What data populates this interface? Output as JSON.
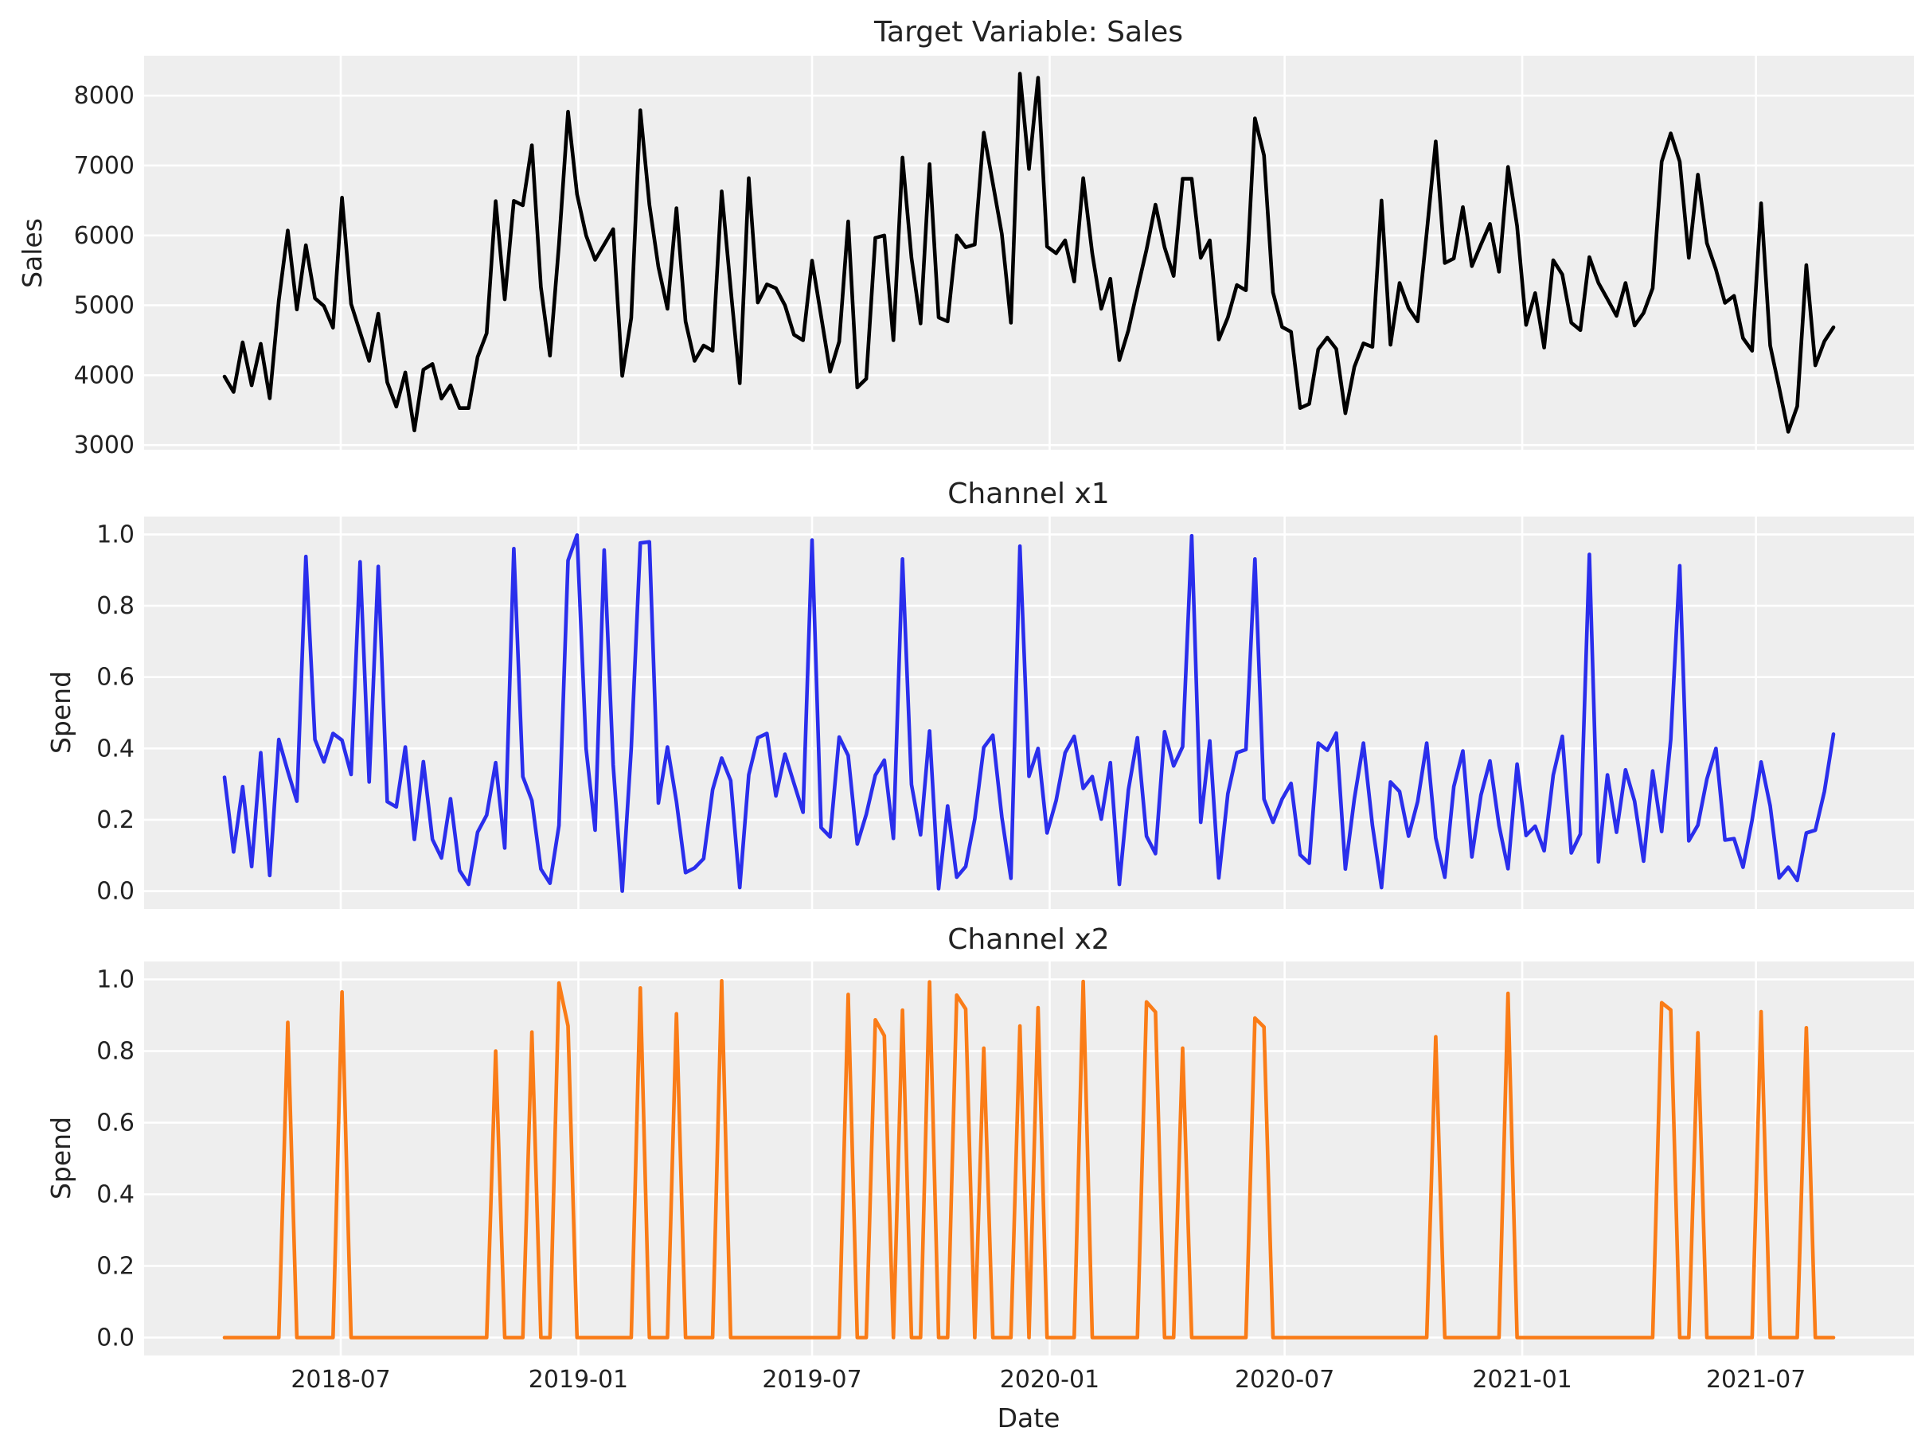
{
  "chart_data": [
    {
      "type": "line",
      "title": "Target Variable: Sales",
      "ylabel": "Sales",
      "ylim": [
        2934,
        8571
      ],
      "yticks": [
        3000,
        4000,
        5000,
        6000,
        7000,
        8000
      ],
      "ytick_labels": [
        "3000",
        "4000",
        "5000",
        "6000",
        "7000",
        "8000"
      ],
      "grid": true,
      "date_start": "2018-04-02",
      "date_freq": "weekly",
      "color": "#000000",
      "values": [
        3980,
        3760,
        4470,
        3855,
        4450,
        3670,
        5070,
        6070,
        4940,
        5860,
        5100,
        4990,
        4680,
        6540,
        5020,
        4615,
        4205,
        4880,
        3900,
        3550,
        4040,
        3210,
        4080,
        4160,
        3665,
        3855,
        3530,
        3530,
        4260,
        4600,
        6490,
        5085,
        6495,
        6430,
        7290,
        5260,
        4280,
        5870,
        7770,
        6590,
        6000,
        5650,
        5870,
        6090,
        3990,
        4820,
        7790,
        6440,
        5550,
        4950,
        6390,
        4770,
        4205,
        4425,
        4350,
        6630,
        5240,
        3885,
        6820,
        5040,
        5300,
        5245,
        5000,
        4580,
        4500,
        5640,
        4845,
        4050,
        4480,
        6200,
        3825,
        3950,
        5965,
        6000,
        4500,
        7115,
        5680,
        4740,
        7020,
        4825,
        4770,
        6000,
        5830,
        5870,
        7470,
        6745,
        6020,
        4750,
        8315,
        6950,
        8255,
        5840,
        5745,
        5930,
        5340,
        6820,
        5740,
        4950,
        5380,
        4215,
        4645,
        5230,
        5795,
        6440,
        5830,
        5420,
        6810,
        6810,
        5680,
        5930,
        4510,
        4825,
        5290,
        5215,
        7675,
        7145,
        5185,
        4690,
        4620,
        3530,
        3590,
        4370,
        4540,
        4375,
        3455,
        4120,
        4455,
        4405,
        6500,
        4435,
        5320,
        4960,
        4770,
        6040,
        7345,
        5605,
        5670,
        6405,
        5560,
        5870,
        6165,
        5480,
        6980,
        6135,
        4720,
        5175,
        4395,
        5645,
        5440,
        4750,
        4645,
        5690,
        5320,
        5090,
        4850,
        5320,
        4710,
        4890,
        5245,
        7055,
        7460,
        7055,
        5680,
        6870,
        5890,
        5510,
        5035,
        5135,
        4530,
        4350,
        6460,
        4425,
        3820,
        3190,
        3555,
        5575,
        4140,
        4485,
        4685
      ]
    },
    {
      "type": "line",
      "title": "Channel x1",
      "ylabel": "Spend",
      "ylim": [
        -0.05,
        1.05
      ],
      "yticks": [
        0,
        0.2,
        0.4,
        0.6,
        0.8,
        1.0
      ],
      "ytick_labels": [
        "0.0",
        "0.2",
        "0.4",
        "0.6",
        "0.8",
        "1.0"
      ],
      "grid": true,
      "date_start": "2018-04-02",
      "date_freq": "weekly",
      "color": "#2a2eec",
      "values": [
        0.319,
        0.11,
        0.293,
        0.069,
        0.388,
        0.044,
        0.425,
        0.336,
        0.252,
        0.938,
        0.425,
        0.362,
        0.442,
        0.423,
        0.327,
        0.923,
        0.306,
        0.91,
        0.251,
        0.236,
        0.404,
        0.145,
        0.363,
        0.145,
        0.093,
        0.259,
        0.058,
        0.019,
        0.165,
        0.213,
        0.36,
        0.121,
        0.96,
        0.321,
        0.254,
        0.062,
        0.022,
        0.184,
        0.927,
        0.998,
        0.399,
        0.171,
        0.956,
        0.354,
        0.0,
        0.4,
        0.976,
        0.979,
        0.247,
        0.404,
        0.251,
        0.052,
        0.065,
        0.091,
        0.284,
        0.373,
        0.31,
        0.01,
        0.326,
        0.43,
        0.442,
        0.267,
        0.384,
        0.302,
        0.221,
        0.984,
        0.178,
        0.152,
        0.432,
        0.38,
        0.132,
        0.215,
        0.325,
        0.367,
        0.148,
        0.931,
        0.299,
        0.158,
        0.449,
        0.007,
        0.239,
        0.039,
        0.069,
        0.202,
        0.403,
        0.437,
        0.208,
        0.036,
        0.967,
        0.322,
        0.4,
        0.163,
        0.254,
        0.388,
        0.434,
        0.288,
        0.321,
        0.202,
        0.36,
        0.019,
        0.284,
        0.43,
        0.154,
        0.105,
        0.447,
        0.351,
        0.405,
        0.996,
        0.193,
        0.421,
        0.037,
        0.273,
        0.388,
        0.397,
        0.931,
        0.258,
        0.193,
        0.258,
        0.302,
        0.102,
        0.078,
        0.415,
        0.395,
        0.443,
        0.062,
        0.259,
        0.415,
        0.184,
        0.01,
        0.306,
        0.279,
        0.154,
        0.251,
        0.415,
        0.149,
        0.039,
        0.293,
        0.393,
        0.096,
        0.269,
        0.365,
        0.184,
        0.063,
        0.356,
        0.156,
        0.182,
        0.113,
        0.325,
        0.434,
        0.107,
        0.16,
        0.944,
        0.082,
        0.326,
        0.165,
        0.34,
        0.252,
        0.084,
        0.337,
        0.167,
        0.425,
        0.912,
        0.141,
        0.185,
        0.314,
        0.4,
        0.143,
        0.147,
        0.067,
        0.199,
        0.362,
        0.239,
        0.037,
        0.067,
        0.03,
        0.163,
        0.171,
        0.279,
        0.44
      ]
    },
    {
      "type": "line",
      "title": "Channel x2",
      "ylabel": "Spend",
      "xlabel": "Date",
      "ylim": [
        -0.05,
        1.05
      ],
      "yticks": [
        0,
        0.2,
        0.4,
        0.6,
        0.8,
        1.0
      ],
      "ytick_labels": [
        "0.0",
        "0.2",
        "0.4",
        "0.6",
        "0.8",
        "1.0"
      ],
      "xticks": [
        "2018-07-01",
        "2019-01-01",
        "2019-07-01",
        "2020-01-01",
        "2020-07-01",
        "2021-01-01",
        "2021-07-01"
      ],
      "xtick_labels": [
        "2018-07",
        "2019-01",
        "2019-07",
        "2020-01",
        "2020-07",
        "2021-01",
        "2021-07"
      ],
      "grid": true,
      "date_start": "2018-04-02",
      "date_freq": "weekly",
      "color": "#fa7c17",
      "values": [
        0,
        0,
        0,
        0,
        0,
        0,
        0,
        0.88,
        0,
        0,
        0,
        0,
        0,
        0.965,
        0,
        0,
        0,
        0,
        0,
        0,
        0,
        0,
        0,
        0,
        0,
        0,
        0,
        0,
        0,
        0,
        0.8,
        0,
        0,
        0,
        0.853,
        0,
        0,
        0.99,
        0.87,
        0,
        0,
        0,
        0,
        0,
        0,
        0,
        0.976,
        0,
        0,
        0,
        0.904,
        0,
        0,
        0,
        0,
        0.996,
        0,
        0,
        0,
        0,
        0,
        0,
        0,
        0,
        0,
        0,
        0,
        0,
        0,
        0.958,
        0,
        0,
        0.887,
        0.843,
        0,
        0.914,
        0,
        0,
        0.993,
        0,
        0,
        0.956,
        0.917,
        0,
        0.808,
        0,
        0,
        0,
        0.87,
        0,
        0.921,
        0,
        0,
        0,
        0,
        0.994,
        0,
        0,
        0,
        0,
        0,
        0,
        0.937,
        0.909,
        0,
        0,
        0.808,
        0,
        0,
        0,
        0,
        0,
        0,
        0,
        0.892,
        0.867,
        0,
        0,
        0,
        0,
        0,
        0,
        0,
        0,
        0,
        0,
        0,
        0,
        0,
        0,
        0,
        0,
        0,
        0,
        0.84,
        0,
        0,
        0,
        0,
        0,
        0,
        0,
        0.961,
        0,
        0,
        0,
        0,
        0,
        0,
        0,
        0,
        0,
        0,
        0,
        0,
        0,
        0,
        0,
        0,
        0.935,
        0.915,
        0,
        0,
        0.851,
        0,
        0,
        0,
        0,
        0,
        0,
        0.91,
        0,
        0,
        0,
        0,
        0.865,
        0,
        0,
        0
      ]
    }
  ]
}
